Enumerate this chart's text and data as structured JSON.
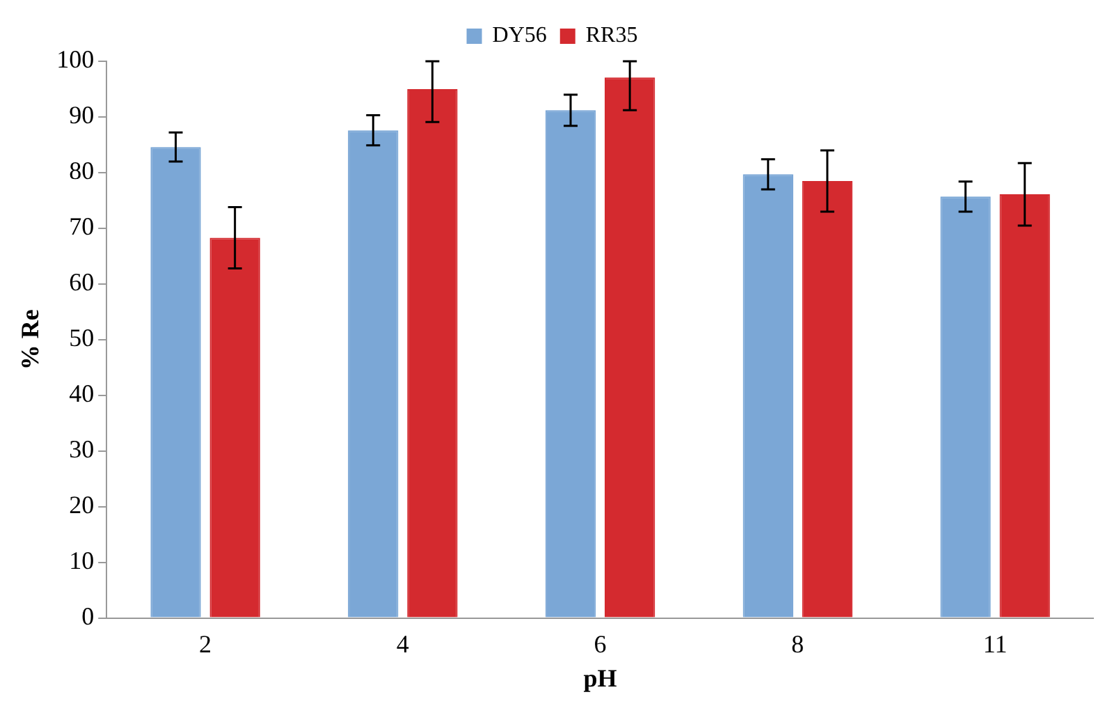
{
  "chart_data": {
    "type": "bar",
    "xlabel": "pH",
    "ylabel": "% Re",
    "categories": [
      "2",
      "4",
      "6",
      "8",
      "11"
    ],
    "series": [
      {
        "name": "DY56",
        "color": "#7ba7d6",
        "values": [
          84.6,
          87.6,
          91.2,
          79.7,
          75.7
        ],
        "errors": [
          2.6,
          2.7,
          2.8,
          2.7,
          2.7
        ]
      },
      {
        "name": "RR35",
        "color": "#d42a2f",
        "values": [
          68.3,
          95.0,
          97.1,
          78.5,
          76.1
        ],
        "errors": [
          5.5,
          [
            89.1,
            100
          ],
          [
            91.2,
            100
          ],
          5.5,
          5.6
        ]
      }
    ],
    "ylim": [
      0,
      100
    ],
    "yticks": [
      0,
      10,
      20,
      30,
      40,
      50,
      60,
      70,
      80,
      90,
      100
    ],
    "grid": false,
    "legend": "top"
  }
}
